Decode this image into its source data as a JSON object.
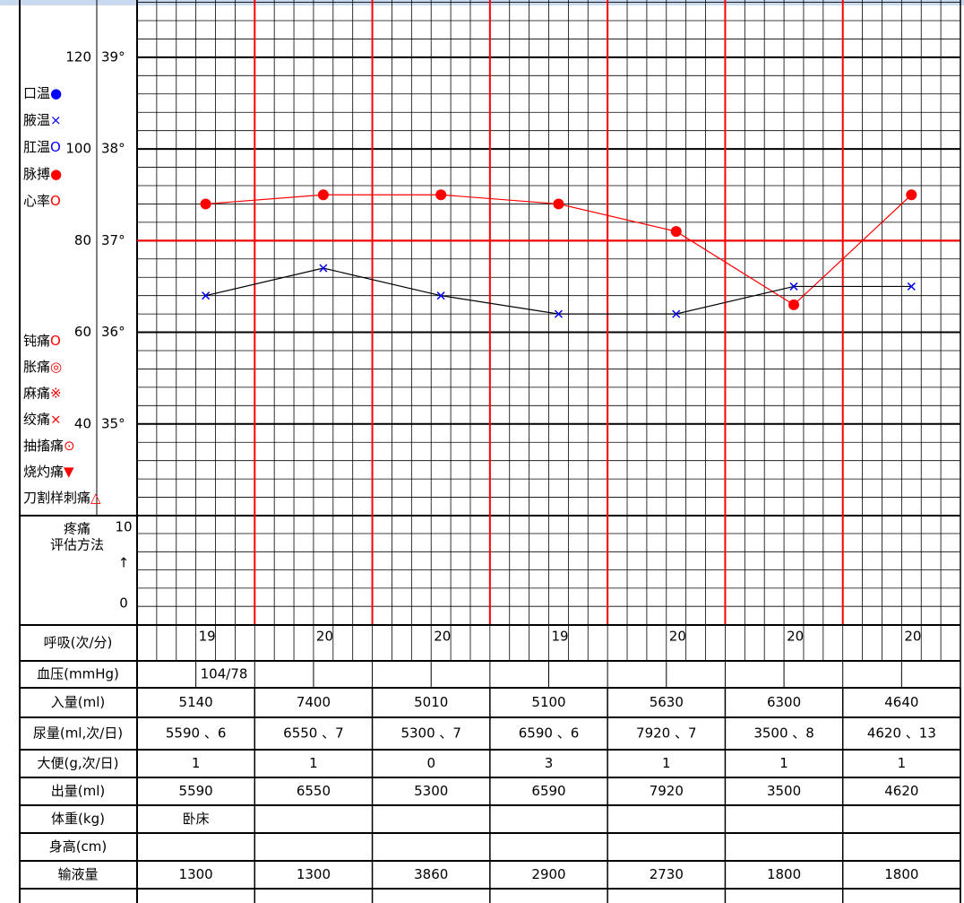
{
  "chart_data": {
    "type": "line",
    "categories": [
      null,
      null,
      null,
      null,
      null,
      null,
      null
    ],
    "series": [
      {
        "name": "脉搏",
        "color": "#ff0000",
        "marker_color": "#ff0000",
        "marker": "circle",
        "axis": "y",
        "values": [
          88,
          90,
          90,
          88,
          82,
          66,
          90
        ]
      },
      {
        "name": "腋温",
        "color": "#000000",
        "marker_color": "#0000ff",
        "marker": "x",
        "axis": "y2",
        "values": [
          36.4,
          36.7,
          36.4,
          36.2,
          36.2,
          36.5,
          36.5
        ]
      }
    ],
    "ylim": [
      20,
      132.5
    ],
    "yticks": [
      40,
      60,
      80,
      100,
      120
    ],
    "y2lim": [
      34,
      39.625
    ],
    "y2ticks": [
      {
        "value": 35,
        "label": "35°"
      },
      {
        "value": 36,
        "label": "36°"
      },
      {
        "value": 37,
        "label": "37°"
      },
      {
        "value": 38,
        "label": "38°"
      },
      {
        "value": 39,
        "label": "39°"
      }
    ],
    "reference_line": {
      "value": 37,
      "color": "#ff0000"
    },
    "day_line_color": "#ff0000",
    "grid": true
  },
  "legend_vitals": [
    {
      "label": "口温",
      "symbol": "●",
      "color": "#0000ff"
    },
    {
      "label": "腋温",
      "symbol": "×",
      "color": "#0000ff"
    },
    {
      "label": "肛温",
      "symbol": "O",
      "color": "#0000ff"
    },
    {
      "label": "脉搏",
      "symbol": "●",
      "color": "#ff0000"
    },
    {
      "label": "心率",
      "symbol": "O",
      "color": "#ff0000"
    }
  ],
  "legend_pain": [
    {
      "label": "钝痛",
      "symbol": "O",
      "color": "#ff0000"
    },
    {
      "label": "胀痛",
      "symbol": "◎",
      "color": "#ff0000"
    },
    {
      "label": "麻痛",
      "symbol": "※",
      "color": "#ff0000"
    },
    {
      "label": "绞痛",
      "symbol": "×",
      "color": "#ff0000"
    },
    {
      "label": "抽搐痛",
      "symbol": "⊙",
      "color": "#ff0000"
    },
    {
      "label": "烧灼痛",
      "symbol": "▼",
      "color": "#ff0000"
    },
    {
      "label": "刀割样刺痛",
      "symbol": "△",
      "color": "#ff0000"
    }
  ],
  "pain_scale": {
    "title": [
      "疼痛",
      "评估方法"
    ],
    "ticks": [
      10,
      0
    ],
    "arrow": "↑"
  },
  "table": {
    "respiration": {
      "label": "呼吸(次/分)",
      "values": [
        19,
        20,
        20,
        19,
        20,
        20,
        20
      ]
    },
    "blood_pressure": {
      "label": "血压(mmHg)",
      "values": [
        null,
        "104/78",
        null,
        null,
        null,
        null,
        null,
        null,
        null,
        null,
        null,
        null,
        null,
        null
      ]
    },
    "rows": [
      {
        "label": "入量(ml)",
        "values": [
          5140,
          7400,
          5010,
          5100,
          5630,
          6300,
          4640
        ]
      },
      {
        "label": "尿量(ml,次/日)",
        "values": [
          "5590 、6",
          "6550 、7",
          "5300 、7",
          "6590 、6",
          "7920 、7",
          "3500 、8",
          "4620 、13"
        ]
      },
      {
        "label": "大便(g,次/日)",
        "values": [
          1,
          1,
          0,
          3,
          1,
          1,
          1
        ]
      },
      {
        "label": "出量(ml)",
        "values": [
          5590,
          6550,
          5300,
          6590,
          7920,
          3500,
          4620
        ]
      },
      {
        "label": "体重(kg)",
        "values": [
          "卧床",
          null,
          null,
          null,
          null,
          null,
          null
        ]
      },
      {
        "label": "身高(cm)",
        "values": [
          null,
          null,
          null,
          null,
          null,
          null,
          null
        ]
      },
      {
        "label": "输液量",
        "values": [
          1300,
          1300,
          3860,
          2900,
          2730,
          1800,
          1800
        ]
      }
    ]
  }
}
